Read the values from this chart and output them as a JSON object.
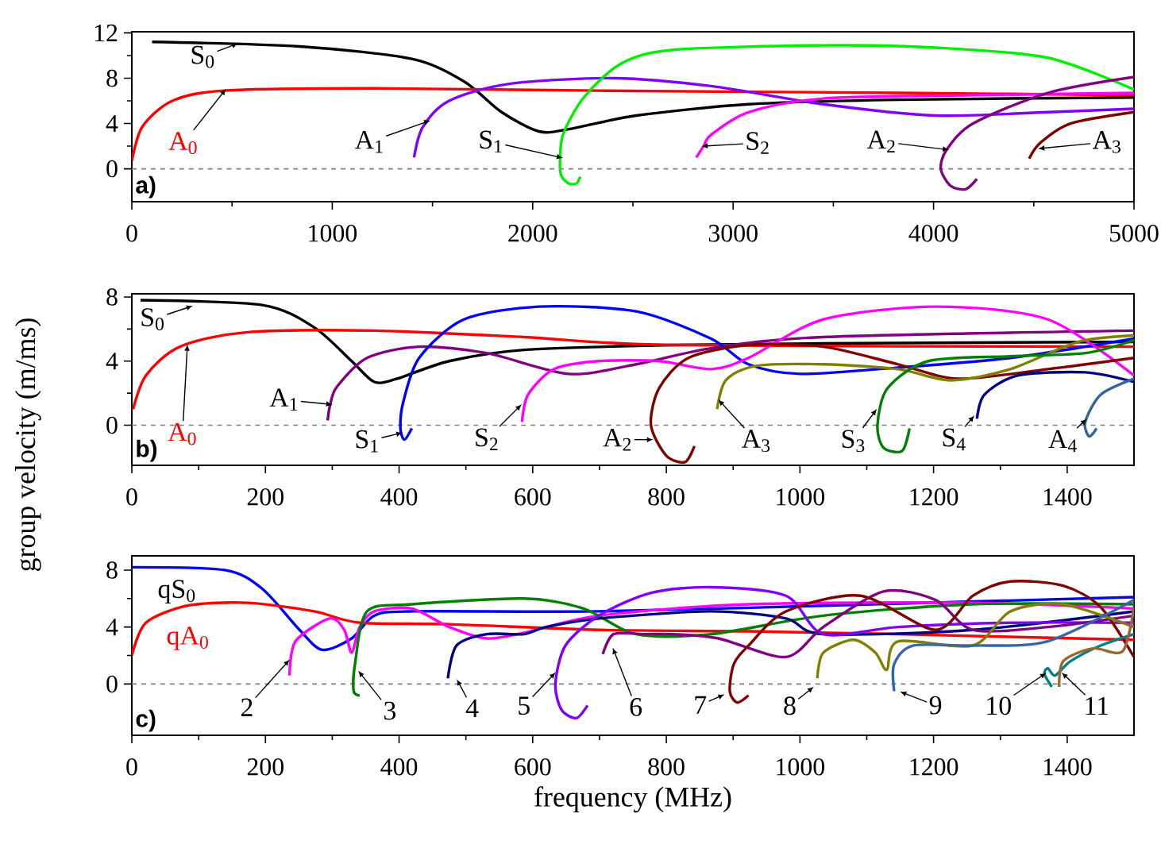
{
  "chart_data": [
    {
      "type": "line",
      "title": "a)",
      "xlim": [
        0,
        5000
      ],
      "xticks": [
        0,
        1000,
        2000,
        3000,
        4000,
        5000
      ],
      "ylim": [
        -2.9,
        12.1
      ],
      "yticks": [
        0,
        4,
        8,
        12
      ],
      "ref_lines": [
        {
          "axis": "y",
          "value": 0,
          "color": "#808080",
          "line_style": "dashed"
        }
      ],
      "series": [
        {
          "color": "#000000",
          "x": [
            101,
            836,
            1397,
            1658,
            1845,
            2031,
            2181,
            2517,
            3077,
            3824,
            5000
          ],
          "values": [
            11.2,
            10.8,
            9.7,
            7.7,
            5.0,
            3.3,
            3.5,
            4.7,
            5.7,
            6.1,
            6.3
          ]
        },
        {
          "color": "#ff0000",
          "x": [
            0,
            52,
            202,
            463,
            1210,
            2330,
            3824,
            5000
          ],
          "values": [
            0.7,
            3.7,
            6.0,
            6.9,
            7.1,
            6.9,
            6.7,
            6.5
          ]
        },
        {
          "color": "#8000ff",
          "x": [
            1408,
            1452,
            1583,
            1882,
            2405,
            2890,
            3450,
            4010,
            4570,
            5000
          ],
          "values": [
            1.0,
            3.7,
            6.0,
            7.5,
            8.0,
            7.3,
            5.7,
            4.7,
            5.0,
            5.3
          ]
        },
        {
          "color": "#00ee00",
          "x": [
            2237,
            2218,
            2180,
            2145,
            2136,
            2151,
            2255,
            2442,
            2703,
            3450,
            4010,
            4570,
            5000
          ],
          "values": [
            -0.7,
            -1.3,
            -1.3,
            -0.7,
            0.3,
            3.0,
            6.3,
            9.3,
            10.5,
            10.9,
            10.7,
            9.8,
            7.0
          ]
        },
        {
          "color": "#ff00ff",
          "x": [
            2816,
            2853,
            2890,
            3077,
            3450,
            4197,
            5000
          ],
          "values": [
            1.0,
            2.0,
            3.0,
            5.0,
            6.2,
            6.5,
            6.7
          ]
        },
        {
          "color": "#800080",
          "x": [
            4216,
            4160,
            4085,
            4036,
            4066,
            4197,
            4570,
            5000
          ],
          "values": [
            -0.9,
            -1.8,
            -1.5,
            0.0,
            1.7,
            4.0,
            6.7,
            8.1
          ]
        },
        {
          "color": "#800000",
          "x": [
            4477,
            4533,
            4683,
            5000
          ],
          "values": [
            0.9,
            2.3,
            4.0,
            5.0
          ]
        }
      ],
      "annotations": [
        {
          "text": "S$_{0}$",
          "x": 520,
          "y": 11.0
        },
        {
          "text": "A$_{0}$",
          "x": 463,
          "y": 6.9
        },
        {
          "text": "A$_{1}$",
          "x": 1479,
          "y": 4.2
        },
        {
          "text": "S$_{1}$",
          "x": 2140,
          "y": 1.0
        },
        {
          "text": "S$_{2}$",
          "x": 2853,
          "y": 2.0
        },
        {
          "text": "A$_{2}$",
          "x": 4066,
          "y": 1.7
        },
        {
          "text": "A$_{3}$",
          "x": 4533,
          "y": 1.8
        }
      ]
    },
    {
      "type": "line",
      "title": "b)",
      "ylabel": "group velocity (m/ms)",
      "xlim": [
        0,
        1500
      ],
      "xticks": [
        0,
        200,
        400,
        600,
        800,
        1000,
        1200,
        1400
      ],
      "ylim": [
        -2.5,
        8.2
      ],
      "yticks": [
        0,
        4,
        8
      ],
      "ref_lines": [
        {
          "axis": "y",
          "value": 0,
          "color": "#808080",
          "line_style": "dashed"
        }
      ],
      "series": [
        {
          "color": "#000000",
          "x": [
            13,
            195,
            273,
            329,
            363,
            397,
            475,
            587,
            811,
            1035,
            1500
          ],
          "values": [
            7.8,
            7.5,
            6.1,
            4.0,
            2.7,
            2.9,
            4.0,
            4.7,
            5.0,
            5.1,
            5.2
          ]
        },
        {
          "color": "#ff0000",
          "x": [
            2,
            21,
            72,
            173,
            363,
            587,
            811,
            1500
          ],
          "values": [
            1.0,
            3.1,
            4.9,
            5.8,
            5.9,
            5.5,
            5.0,
            4.9
          ]
        },
        {
          "color": "#800080",
          "x": [
            293,
            297,
            307,
            352,
            430,
            531,
            654,
            755,
            867,
            1035,
            1500
          ],
          "values": [
            0.3,
            1.3,
            2.4,
            4.2,
            4.9,
            4.5,
            3.2,
            3.8,
            4.8,
            5.5,
            5.9
          ]
        },
        {
          "color": "#0000ff",
          "x": [
            419,
            408,
            402,
            406,
            430,
            497,
            609,
            755,
            867,
            923,
            1001,
            1147,
            1315,
            1500
          ],
          "values": [
            -0.2,
            -0.9,
            -0.2,
            1.4,
            4.2,
            6.6,
            7.4,
            7.1,
            5.4,
            3.8,
            3.2,
            3.6,
            4.2,
            5.4
          ]
        },
        {
          "color": "#ff00ff",
          "x": [
            584,
            593,
            632,
            699,
            789,
            867,
            923,
            1035,
            1203,
            1371,
            1500
          ],
          "values": [
            0.2,
            1.9,
            3.5,
            4.0,
            4.0,
            3.5,
            4.2,
            6.6,
            7.4,
            6.6,
            3.1
          ]
        },
        {
          "color": "#800000",
          "x": [
            842,
            828,
            800,
            777,
            789,
            833,
            923,
            1035,
            1147,
            1237,
            1371,
            1500
          ],
          "values": [
            -1.3,
            -2.3,
            -1.9,
            0.0,
            2.3,
            4.2,
            5.0,
            4.9,
            3.8,
            2.9,
            3.5,
            4.2
          ]
        },
        {
          "color": "#808000",
          "x": [
            876,
            889,
            934,
            1035,
            1147,
            1226,
            1315,
            1416,
            1500
          ],
          "values": [
            1.0,
            2.8,
            3.7,
            3.8,
            3.5,
            2.8,
            3.5,
            5.2,
            5.6
          ]
        },
        {
          "color": "#008000",
          "x": [
            1164,
            1153,
            1125,
            1116,
            1131,
            1192,
            1315,
            1427,
            1500
          ],
          "values": [
            -0.2,
            -1.6,
            -1.4,
            0.0,
            2.3,
            4.0,
            4.3,
            4.5,
            5.3
          ]
        },
        {
          "color": "#000080",
          "x": [
            1265,
            1276,
            1326,
            1427,
            1500
          ],
          "values": [
            0.4,
            1.9,
            3.1,
            3.3,
            2.7
          ]
        },
        {
          "color": "#336699",
          "x": [
            1444,
            1433,
            1427,
            1450,
            1500
          ],
          "values": [
            -0.2,
            -0.7,
            0.2,
            1.9,
            2.9
          ]
        }
      ],
      "annotations": [
        {
          "text": "S$_{0}$",
          "x": 88,
          "y": 7.4
        },
        {
          "text": "A$_{0}$",
          "x": 83,
          "y": 4.9
        },
        {
          "text": "A$_{1}$",
          "x": 297,
          "y": 1.3
        },
        {
          "text": "S$_{1}$",
          "x": 402,
          "y": -0.5
        },
        {
          "text": "S$_{2}$",
          "x": 581,
          "y": 1.2
        },
        {
          "text": "A$_{2}$",
          "x": 777,
          "y": -0.9
        },
        {
          "text": "A$_{3}$",
          "x": 880,
          "y": 1.5
        },
        {
          "text": "S$_{3}$",
          "x": 1113,
          "y": 0.9
        },
        {
          "text": "S$_{4}$",
          "x": 1259,
          "y": 0.5
        },
        {
          "text": "A$_{4}$",
          "x": 1427,
          "y": 0.3
        }
      ]
    },
    {
      "type": "line",
      "title": "c)",
      "xlabel": "frequency (MHz)",
      "xlim": [
        0,
        1500
      ],
      "xticks": [
        0,
        200,
        400,
        600,
        800,
        1000,
        1200,
        1400
      ],
      "ylim": [
        -3.6,
        9
      ],
      "yticks": [
        0,
        4,
        8
      ],
      "ref_lines": [
        {
          "axis": "y",
          "value": 0,
          "color": "#808080",
          "line_style": "dashed"
        }
      ],
      "series": [
        {
          "color": "#0000ff",
          "x": [
            0,
            139,
            195,
            251,
            285,
            329,
            363,
            419,
            699,
            1035,
            1500
          ],
          "values": [
            8.2,
            8.0,
            6.7,
            3.8,
            2.4,
            3.2,
            4.8,
            5.1,
            5.1,
            5.5,
            6.1
          ]
        },
        {
          "color": "#ff0000",
          "x": [
            0,
            21,
            83,
            173,
            273,
            341,
            475,
            699,
            923,
            1147,
            1500
          ],
          "values": [
            2.0,
            4.3,
            5.5,
            5.7,
            5.1,
            4.3,
            4.2,
            3.8,
            3.7,
            3.5,
            3.1
          ]
        },
        {
          "color": "#ff00ff",
          "x": [
            236,
            245,
            296,
            318,
            329,
            341,
            363,
            419,
            475,
            531,
            587,
            699,
            923,
            1259,
            1500
          ],
          "values": [
            0.6,
            3.0,
            4.6,
            3.8,
            2.2,
            4.0,
            5.1,
            5.3,
            4.0,
            3.2,
            3.6,
            4.8,
            5.6,
            5.7,
            5.3
          ]
        },
        {
          "color": "#008000",
          "x": [
            341,
            332,
            334,
            352,
            419,
            587,
            676,
            755,
            867,
            1035,
            1259,
            1500
          ],
          "values": [
            -0.8,
            -0.5,
            1.4,
            5.1,
            5.6,
            6.0,
            5.3,
            3.5,
            3.5,
            4.8,
            5.6,
            5.6
          ]
        },
        {
          "color": "#000080",
          "x": [
            473,
            486,
            531,
            587,
            620,
            699,
            867,
            979,
            1035,
            1259,
            1500
          ],
          "values": [
            0.4,
            2.7,
            3.5,
            3.5,
            4.0,
            4.6,
            5.1,
            4.6,
            3.5,
            3.8,
            5.1
          ]
        },
        {
          "color": "#8000ff",
          "x": [
            682,
            665,
            643,
            634,
            649,
            699,
            777,
            867,
            979,
            1035,
            1147,
            1315,
            1500
          ],
          "values": [
            -1.5,
            -2.4,
            -1.8,
            0.0,
            2.7,
            4.8,
            6.4,
            6.8,
            6.2,
            3.5,
            4.0,
            4.3,
            4.3
          ]
        },
        {
          "color": "#800080",
          "x": [
            705,
            721,
            766,
            811,
            878,
            979,
            1035,
            1125,
            1203,
            1259,
            1371,
            1500
          ],
          "values": [
            2.1,
            3.5,
            3.5,
            3.5,
            3.2,
            1.9,
            4.0,
            6.5,
            5.9,
            3.8,
            4.0,
            4.8
          ]
        },
        {
          "color": "#800000",
          "x": [
            923,
            906,
            895,
            901,
            923,
            979,
            1091,
            1203,
            1259,
            1315,
            1394,
            1450,
            1500
          ],
          "values": [
            -0.8,
            -1.3,
            -0.5,
            1.4,
            2.7,
            5.1,
            6.2,
            3.8,
            6.2,
            7.2,
            6.9,
            5.4,
            1.9
          ]
        },
        {
          "color": "#808000",
          "x": [
            1026,
            1035,
            1080,
            1113,
            1130,
            1147,
            1259,
            1315,
            1394,
            1500
          ],
          "values": [
            0.4,
            2.2,
            3.1,
            2.2,
            1.0,
            3.0,
            2.7,
            5.1,
            5.6,
            4.0
          ]
        },
        {
          "color": "#3366aa",
          "x": [
            1141,
            1141,
            1170,
            1259,
            1371,
            1500
          ],
          "values": [
            -0.5,
            1.4,
            2.7,
            2.7,
            3.0,
            5.9
          ]
        },
        {
          "color": "#008080",
          "x": [
            1377,
            1366,
            1371,
            1382,
            1405,
            1450,
            1500
          ],
          "values": [
            -0.2,
            0.7,
            1.1,
            0.6,
            1.6,
            2.7,
            3.5
          ]
        },
        {
          "color": "#996633",
          "x": [
            1388,
            1394,
            1438,
            1483,
            1500
          ],
          "values": [
            -0.2,
            1.6,
            2.5,
            2.3,
            5.4
          ]
        }
      ],
      "annotations": [
        "qS$_{0}$",
        "qA$_{0}$",
        {
          "text": "2",
          "x": 234,
          "y": 1.6
        },
        {
          "text": "3",
          "x": 341,
          "y": 0.8
        },
        {
          "text": "4",
          "x": 488,
          "y": 0.2
        },
        {
          "text": "5",
          "x": 632,
          "y": 0.7
        },
        {
          "text": "6",
          "x": 721,
          "y": 2.4
        },
        {
          "text": "7",
          "x": 884,
          "y": -0.8
        },
        {
          "text": "8",
          "x": 1018,
          "y": -0.3
        },
        {
          "text": "9",
          "x": 1153,
          "y": -0.6
        },
        {
          "text": "10",
          "x": 1366,
          "y": 0.7
        },
        {
          "text": "11",
          "x": 1394,
          "y": 0.7
        }
      ]
    }
  ]
}
